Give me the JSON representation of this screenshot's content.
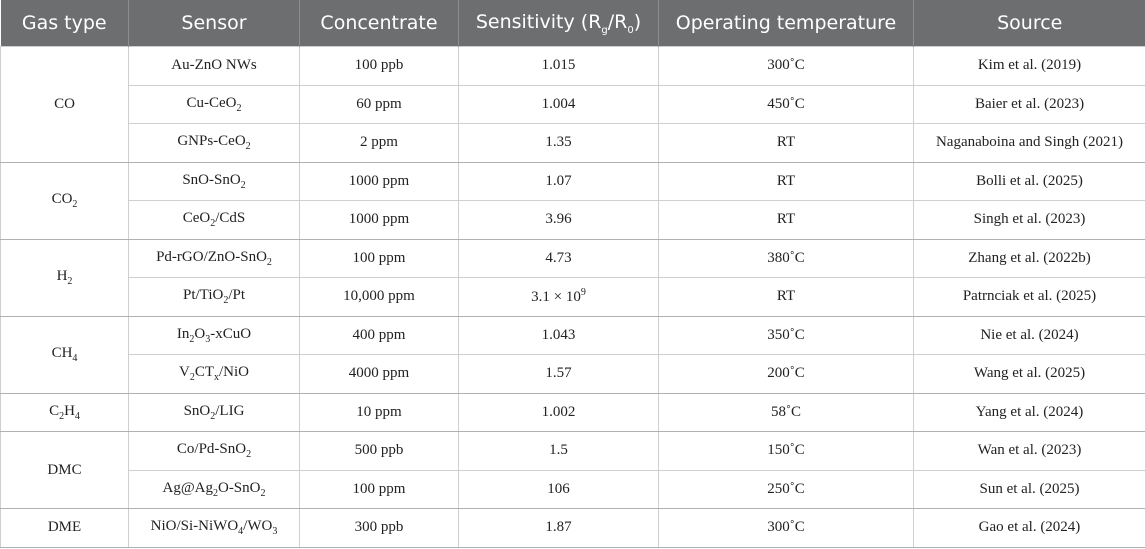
{
  "table": {
    "header": [
      "Gas type",
      "Sensor",
      "Concentrate",
      [
        "Sensitivity (R",
        {
          "sub": "g"
        },
        "/R",
        {
          "sub": "0"
        },
        ")"
      ],
      "Operating temperature",
      "Source"
    ],
    "groups": [
      {
        "gas": "CO",
        "rows": [
          [
            "Au-ZnO NWs",
            "100 ppb",
            "1.015",
            "300˚C",
            "Kim et al. (2019)"
          ],
          [
            [
              "Cu-CeO",
              {
                "sub": "2"
              }
            ],
            "60 ppm",
            "1.004",
            "450˚C",
            "Baier et al. (2023)"
          ],
          [
            [
              "GNPs-CeO",
              {
                "sub": "2"
              }
            ],
            "2 ppm",
            "1.35",
            "RT",
            "Naganaboina and Singh (2021)"
          ]
        ]
      },
      {
        "gas": [
          "CO",
          {
            "sub": "2"
          }
        ],
        "rows": [
          [
            [
              "SnO-SnO",
              {
                "sub": "2"
              }
            ],
            "1000 ppm",
            "1.07",
            "RT",
            "Bolli et al. (2025)"
          ],
          [
            [
              "CeO",
              {
                "sub": "2"
              },
              "/CdS"
            ],
            "1000 ppm",
            "3.96",
            "RT",
            "Singh et al. (2023)"
          ]
        ]
      },
      {
        "gas": [
          "H",
          {
            "sub": "2"
          }
        ],
        "rows": [
          [
            [
              "Pd-rGO/ZnO-SnO",
              {
                "sub": "2"
              }
            ],
            "100 ppm",
            "4.73",
            "380˚C",
            "Zhang et al. (2022b)"
          ],
          [
            [
              "Pt/TiO",
              {
                "sub": "2"
              },
              "/Pt"
            ],
            "10,000 ppm",
            [
              "3.1 × 10",
              {
                "sup": "9"
              }
            ],
            "RT",
            "Patrnciak et al. (2025)"
          ]
        ]
      },
      {
        "gas": [
          "CH",
          {
            "sub": "4"
          }
        ],
        "rows": [
          [
            [
              "In",
              {
                "sub": "2"
              },
              "O",
              {
                "sub": "3"
              },
              "-xCuO"
            ],
            "400 ppm",
            "1.043",
            "350˚C",
            "Nie et al. (2024)"
          ],
          [
            [
              "V",
              {
                "sub": "2"
              },
              "CT",
              {
                "sub": "x"
              },
              "/NiO"
            ],
            "4000 ppm",
            "1.57",
            "200˚C",
            "Wang et al. (2025)"
          ]
        ]
      },
      {
        "gas": [
          "C",
          {
            "sub": "2"
          },
          "H",
          {
            "sub": "4"
          }
        ],
        "rows": [
          [
            [
              "SnO",
              {
                "sub": "2"
              },
              "/LIG"
            ],
            "10 ppm",
            "1.002",
            "58˚C",
            "Yang et al. (2024)"
          ]
        ]
      },
      {
        "gas": "DMC",
        "rows": [
          [
            [
              "Co/Pd-SnO",
              {
                "sub": "2"
              }
            ],
            "500 ppb",
            "1.5",
            "150˚C",
            "Wan et al. (2023)"
          ],
          [
            [
              "Ag@Ag",
              {
                "sub": "2"
              },
              "O-SnO",
              {
                "sub": "2"
              }
            ],
            "100 ppm",
            "106",
            "250˚C",
            "Sun et al. (2025)"
          ]
        ]
      },
      {
        "gas": "DME",
        "rows": [
          [
            [
              "NiO/Si-NiWO",
              {
                "sub": "4"
              },
              "/WO",
              {
                "sub": "3"
              }
            ],
            "300 ppb",
            "1.87",
            "300˚C",
            "Gao et al. (2024)"
          ]
        ]
      }
    ]
  }
}
